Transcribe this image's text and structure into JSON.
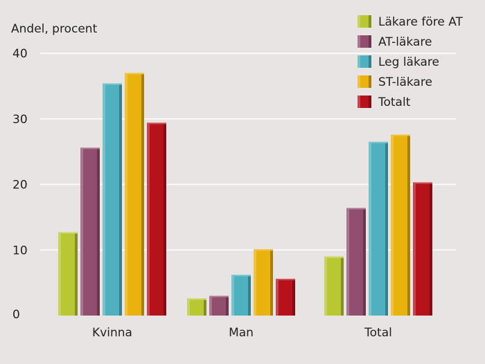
{
  "chart_data": {
    "type": "bar",
    "ylabel": "Andel, procent",
    "xlabel": "",
    "title": "",
    "ylim": [
      0,
      40
    ],
    "yticks": [
      0,
      10,
      20,
      30,
      40
    ],
    "grid": true,
    "legend_position": "top-right",
    "categories": [
      "Kvinna",
      "Man",
      "Total"
    ],
    "series": [
      {
        "name": "Läkare före AT",
        "color": "#b8c832",
        "values": [
          12.7,
          2.6,
          9.0
        ]
      },
      {
        "name": "AT-läkare",
        "color": "#924e6e",
        "values": [
          25.6,
          3.0,
          16.4
        ]
      },
      {
        "name": "Leg läkare",
        "color": "#4fb1bf",
        "values": [
          35.4,
          6.2,
          26.5
        ]
      },
      {
        "name": "ST-läkare",
        "color": "#e9b20c",
        "values": [
          37.0,
          10.1,
          27.6
        ]
      },
      {
        "name": "Totalt",
        "color": "#b5121b",
        "values": [
          29.4,
          5.6,
          20.3
        ]
      }
    ]
  }
}
